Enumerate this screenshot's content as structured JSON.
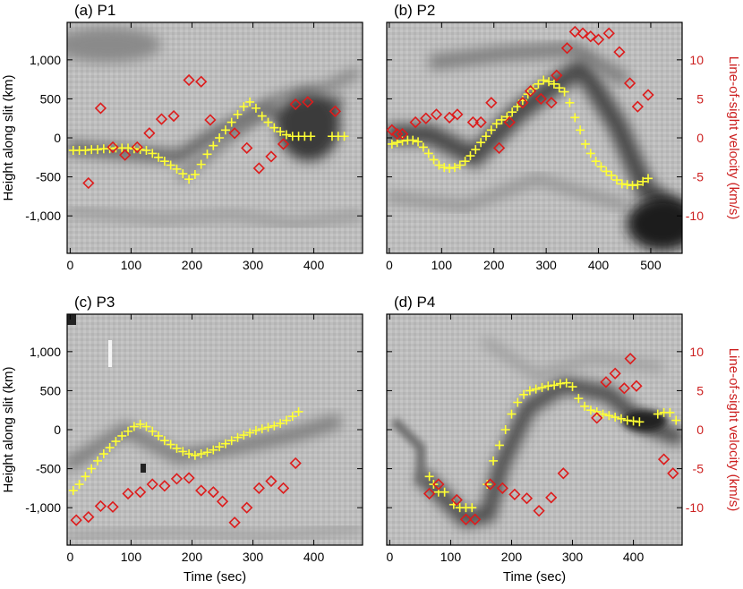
{
  "colors": {
    "height": "#ffff33",
    "velocity": "#dd1c1c",
    "right_axis": "#cc1f1f",
    "background": "#bdbdbd",
    "feature": "#3a3a3a"
  },
  "shared": {
    "xlabel": "Time (sec)",
    "ylabel": "Height along slit (km)",
    "y2label": "Line-of-sight velocity (km/s)",
    "height_ticks": [
      -1000,
      -500,
      0,
      500,
      1000
    ],
    "height_tick_labels": [
      "-1,000",
      "-500",
      "0",
      "500",
      "1,000"
    ],
    "velocity_ticks": [
      -10,
      -5,
      0,
      5,
      10
    ],
    "velocity_tick_labels": [
      "-10",
      "-5",
      "0",
      "5",
      "10"
    ]
  },
  "chart_data": [
    {
      "type": "scatter",
      "title": "(a)  P1",
      "panel": "a",
      "xlim": [
        -5,
        480
      ],
      "ylim": [
        -1480,
        1480
      ],
      "y2lim": [
        -14.8,
        14.8
      ],
      "xticks": [
        0,
        100,
        200,
        300,
        400
      ],
      "series": [
        {
          "name": "Height",
          "axis": "left",
          "marker": "plus",
          "x": [
            5,
            15,
            25,
            35,
            45,
            55,
            65,
            75,
            85,
            95,
            105,
            115,
            125,
            135,
            145,
            155,
            165,
            175,
            185,
            195,
            205,
            215,
            225,
            235,
            245,
            255,
            265,
            275,
            285,
            295,
            305,
            315,
            325,
            335,
            345,
            355,
            365,
            375,
            385,
            395,
            430,
            440,
            450
          ],
          "y": [
            -160,
            -160,
            -160,
            -150,
            -150,
            -140,
            -140,
            -130,
            -130,
            -130,
            -140,
            -150,
            -160,
            -200,
            -250,
            -300,
            -350,
            -400,
            -460,
            -530,
            -470,
            -340,
            -210,
            -100,
            0,
            100,
            200,
            300,
            400,
            460,
            380,
            280,
            200,
            130,
            80,
            40,
            20,
            20,
            20,
            20,
            20,
            20,
            20
          ]
        },
        {
          "name": "Line-of-sight velocity",
          "axis": "right",
          "marker": "diamond",
          "x": [
            30,
            50,
            70,
            90,
            110,
            130,
            150,
            170,
            195,
            215,
            230,
            270,
            290,
            310,
            330,
            350,
            370,
            390,
            435
          ],
          "y": [
            -5.8,
            3.8,
            -1.2,
            -2.2,
            -1.2,
            0.6,
            2.4,
            2.8,
            7.4,
            7.2,
            2.3,
            0.6,
            -1.3,
            -3.9,
            -2.4,
            -0.8,
            4.3,
            4.6,
            3.4
          ]
        }
      ]
    },
    {
      "type": "scatter",
      "title": "(b)  P2",
      "panel": "b",
      "xlim": [
        -5,
        560
      ],
      "ylim": [
        -1480,
        1480
      ],
      "y2lim": [
        -14.8,
        14.8
      ],
      "xticks": [
        0,
        100,
        200,
        300,
        400,
        500
      ],
      "series": [
        {
          "name": "Height",
          "axis": "left",
          "marker": "plus",
          "x": [
            5,
            15,
            25,
            35,
            45,
            55,
            65,
            75,
            85,
            95,
            105,
            115,
            125,
            135,
            145,
            155,
            165,
            175,
            185,
            195,
            205,
            215,
            225,
            235,
            245,
            255,
            265,
            275,
            285,
            295,
            305,
            315,
            325,
            335,
            345,
            355,
            365,
            375,
            385,
            395,
            405,
            415,
            425,
            435,
            445,
            455,
            465,
            475,
            485,
            495
          ],
          "y": [
            -80,
            -60,
            -40,
            -30,
            -30,
            -50,
            -120,
            -200,
            -280,
            -350,
            -380,
            -390,
            -380,
            -350,
            -300,
            -230,
            -150,
            -60,
            20,
            100,
            180,
            230,
            270,
            330,
            400,
            480,
            560,
            630,
            690,
            740,
            720,
            690,
            640,
            590,
            450,
            260,
            100,
            -80,
            -200,
            -300,
            -370,
            -430,
            -480,
            -540,
            -590,
            -600,
            -610,
            -600,
            -560,
            -520
          ]
        },
        {
          "name": "Line-of-sight velocity",
          "axis": "right",
          "marker": "diamond",
          "x": [
            5,
            15,
            25,
            50,
            70,
            90,
            115,
            130,
            160,
            175,
            195,
            210,
            230,
            255,
            270,
            290,
            310,
            320,
            340,
            355,
            370,
            385,
            400,
            420,
            440,
            460,
            475,
            495
          ],
          "y": [
            1,
            0.5,
            0.5,
            2,
            2.5,
            3,
            2.6,
            3,
            2,
            2,
            4.5,
            -1.3,
            2,
            4.5,
            6,
            5,
            4.5,
            8,
            11.5,
            13.6,
            13.4,
            13,
            12.6,
            13.4,
            11,
            7,
            4,
            5.5
          ]
        }
      ]
    },
    {
      "type": "scatter",
      "title": "(c)  P3",
      "panel": "c",
      "xlim": [
        -5,
        480
      ],
      "ylim": [
        -1480,
        1480
      ],
      "y2lim": [
        -14.8,
        14.8
      ],
      "xticks": [
        0,
        100,
        200,
        300,
        400
      ],
      "series": [
        {
          "name": "Height",
          "axis": "left",
          "marker": "plus",
          "x": [
            5,
            15,
            25,
            35,
            45,
            55,
            65,
            75,
            85,
            95,
            105,
            115,
            125,
            135,
            145,
            155,
            165,
            175,
            185,
            195,
            205,
            215,
            225,
            235,
            245,
            255,
            265,
            275,
            285,
            295,
            305,
            315,
            325,
            335,
            345,
            355,
            365,
            375
          ],
          "y": [
            -780,
            -700,
            -600,
            -500,
            -400,
            -310,
            -230,
            -150,
            -80,
            -20,
            40,
            70,
            40,
            -20,
            -80,
            -140,
            -190,
            -240,
            -280,
            -310,
            -330,
            -310,
            -290,
            -260,
            -220,
            -180,
            -140,
            -100,
            -70,
            -40,
            -10,
            10,
            30,
            50,
            80,
            120,
            170,
            230
          ]
        },
        {
          "name": "Line-of-sight velocity",
          "axis": "right",
          "marker": "diamond",
          "x": [
            10,
            30,
            50,
            70,
            95,
            115,
            135,
            155,
            175,
            195,
            215,
            235,
            250,
            270,
            290,
            310,
            330,
            350,
            370
          ],
          "y": [
            -11.6,
            -11.2,
            -9.8,
            -9.9,
            -8.2,
            -8.0,
            -7.0,
            -7.2,
            -6.3,
            -6.2,
            -7.8,
            -8.0,
            -9.2,
            -11.9,
            -10.0,
            -7.5,
            -6.6,
            -7.5,
            -4.3
          ]
        }
      ]
    },
    {
      "type": "scatter",
      "title": "(d)  P4",
      "panel": "d",
      "xlim": [
        -5,
        480
      ],
      "ylim": [
        -1480,
        1480
      ],
      "y2lim": [
        -14.8,
        14.8
      ],
      "xticks": [
        0,
        100,
        200,
        300,
        400
      ],
      "series": [
        {
          "name": "Height",
          "axis": "left",
          "marker": "plus",
          "x": [
            65,
            72,
            80,
            90,
            105,
            115,
            125,
            135,
            160,
            170,
            180,
            190,
            200,
            210,
            220,
            230,
            240,
            250,
            260,
            270,
            280,
            290,
            300,
            310,
            320,
            330,
            340,
            350,
            360,
            370,
            380,
            390,
            400,
            410,
            440,
            450,
            460,
            470
          ],
          "y": [
            -600,
            -700,
            -800,
            -800,
            -960,
            -1000,
            -1000,
            -1000,
            -700,
            -400,
            -200,
            0,
            200,
            350,
            450,
            500,
            520,
            540,
            560,
            570,
            590,
            600,
            550,
            400,
            300,
            250,
            230,
            200,
            180,
            160,
            140,
            120,
            110,
            100,
            200,
            220,
            220,
            120
          ]
        },
        {
          "name": "Line-of-sight velocity",
          "axis": "right",
          "marker": "diamond",
          "x": [
            65,
            80,
            110,
            125,
            140,
            165,
            185,
            205,
            225,
            245,
            265,
            285,
            340,
            355,
            370,
            385,
            395,
            405,
            450,
            465
          ],
          "y": [
            -8.2,
            -7.0,
            -9.0,
            -11.5,
            -11.5,
            -7.0,
            -7.5,
            -8.3,
            -8.8,
            -10.4,
            -8.7,
            -5.6,
            1.5,
            6.1,
            7.2,
            5.3,
            9.1,
            5.6,
            -3.8,
            -5.6
          ]
        }
      ]
    }
  ]
}
